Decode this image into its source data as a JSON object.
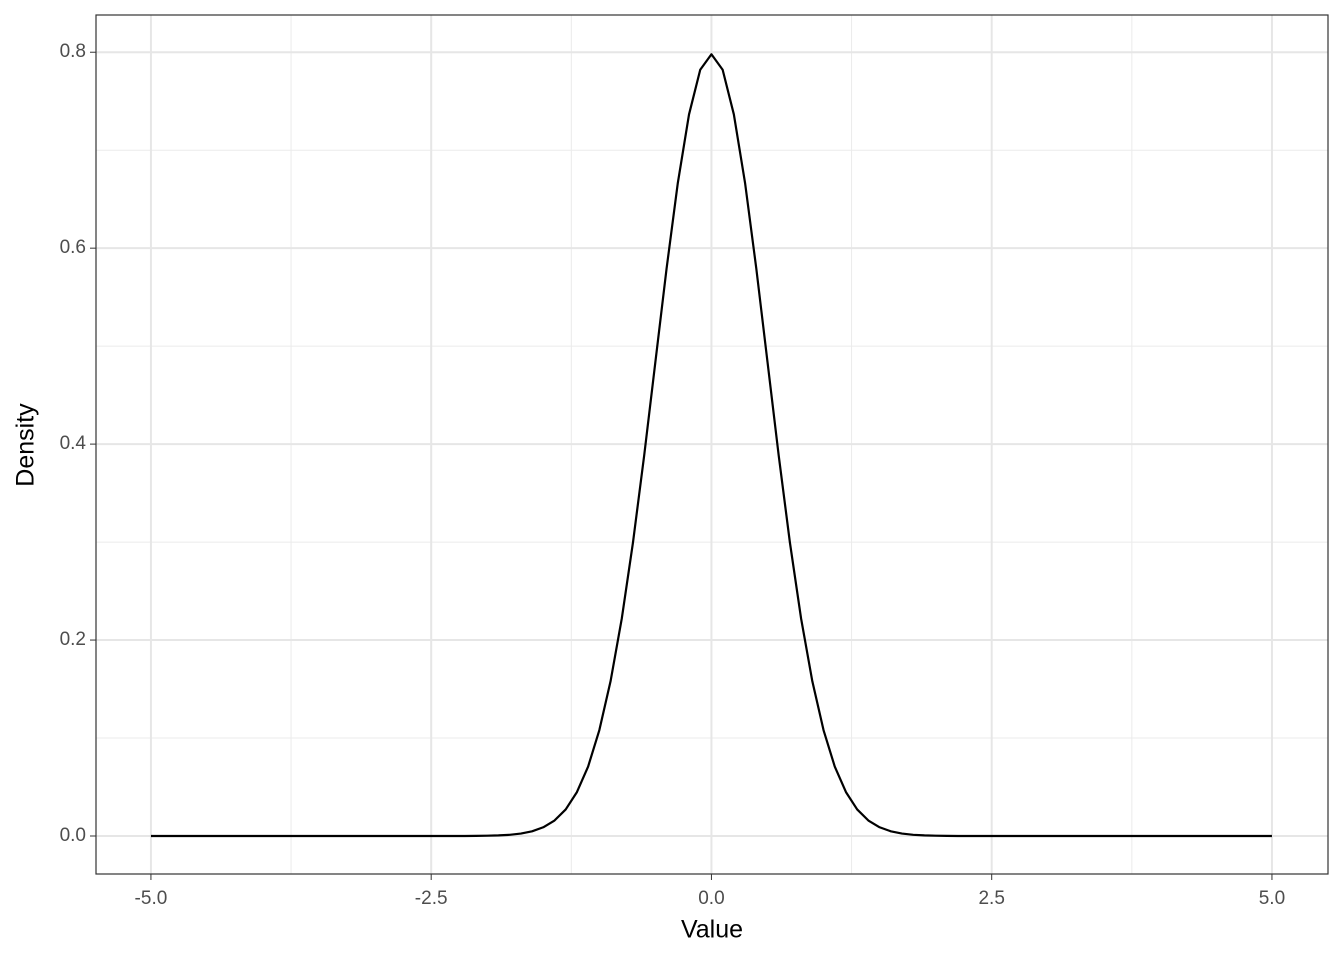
{
  "chart_data": {
    "type": "line",
    "x_label": "Value",
    "y_label": "Density",
    "x": [
      -5.0,
      -4.9,
      -4.8,
      -4.7,
      -4.6,
      -4.5,
      -4.4,
      -4.3,
      -4.2,
      -4.1,
      -4.0,
      -3.9,
      -3.8,
      -3.7,
      -3.6,
      -3.5,
      -3.4,
      -3.3,
      -3.2,
      -3.1,
      -3.0,
      -2.9,
      -2.8,
      -2.7,
      -2.6,
      -2.5,
      -2.4,
      -2.3,
      -2.2,
      -2.1,
      -2.0,
      -1.9,
      -1.8,
      -1.7,
      -1.6,
      -1.5,
      -1.4,
      -1.3,
      -1.2,
      -1.1,
      -1.0,
      -0.9,
      -0.8,
      -0.7,
      -0.6,
      -0.5,
      -0.4,
      -0.3,
      -0.2,
      -0.1,
      0.0,
      0.1,
      0.2,
      0.3,
      0.4,
      0.5,
      0.6,
      0.7,
      0.8,
      0.9,
      1.0,
      1.1,
      1.2,
      1.3,
      1.4,
      1.5,
      1.6,
      1.7,
      1.8,
      1.9,
      2.0,
      2.1,
      2.2,
      2.3,
      2.4,
      2.5,
      2.6,
      2.7,
      2.8,
      2.9,
      3.0,
      3.1,
      3.2,
      3.3,
      3.4,
      3.5,
      3.6,
      3.7,
      3.8,
      3.9,
      4.0,
      4.1,
      4.2,
      4.3,
      4.4,
      4.5,
      4.6,
      4.7,
      4.8,
      4.9,
      5.0
    ],
    "series": [
      {
        "color": "#000000",
        "values": [
          0,
          0,
          0,
          0,
          0,
          0,
          0,
          0,
          0,
          0,
          0,
          0,
          0,
          0,
          0,
          0,
          0,
          0,
          0,
          0,
          0,
          0,
          0,
          0,
          0,
          0,
          0,
          0,
          0,
          0.0001,
          0.0003,
          0.0006,
          0.0012,
          0.0025,
          0.0048,
          0.0089,
          0.0158,
          0.0271,
          0.0448,
          0.0709,
          0.108,
          0.1579,
          0.2218,
          0.2995,
          0.3884,
          0.4839,
          0.5794,
          0.6665,
          0.7365,
          0.7821,
          0.7979,
          0.7821,
          0.7365,
          0.6665,
          0.5794,
          0.4839,
          0.3884,
          0.2995,
          0.2218,
          0.1579,
          0.108,
          0.0709,
          0.0448,
          0.0271,
          0.0158,
          0.0089,
          0.0048,
          0.0025,
          0.0012,
          0.0006,
          0.0003,
          0.0001,
          0,
          0,
          0,
          0,
          0,
          0,
          0,
          0,
          0,
          0,
          0,
          0,
          0,
          0,
          0,
          0,
          0,
          0,
          0,
          0,
          0,
          0,
          0,
          0,
          0,
          0,
          0,
          0,
          0
        ]
      }
    ],
    "xlim": [
      -5.49,
      5.5
    ],
    "ylim": [
      -0.0388,
      0.838
    ],
    "xticks": [
      {
        "value": -5,
        "label": "-5.0"
      },
      -2.5,
      {
        "value": 0,
        "label": "0.0"
      },
      2.5,
      {
        "value": 5,
        "label": "5.0"
      }
    ],
    "yticks": [
      {
        "value": 0,
        "label": "0.0"
      },
      0.2,
      0.4,
      0.6,
      0.8
    ],
    "grid": true
  }
}
